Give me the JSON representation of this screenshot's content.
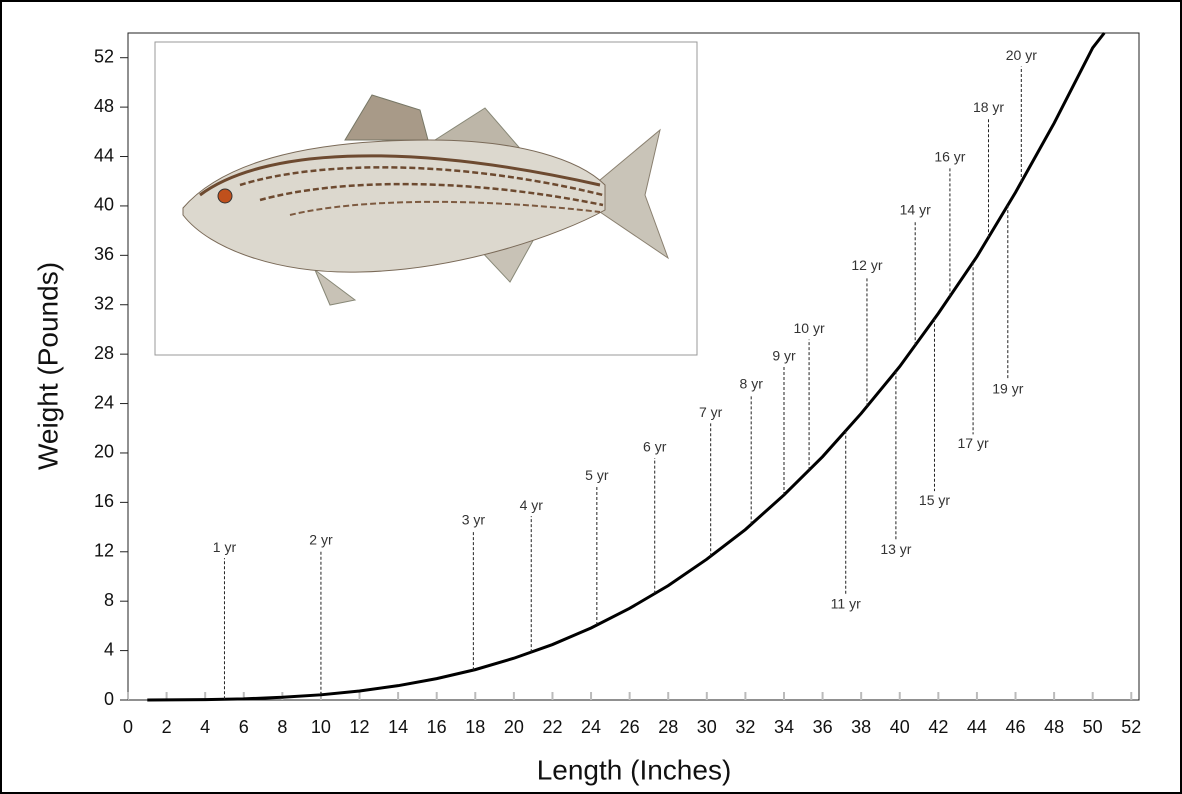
{
  "chart_data": {
    "type": "line",
    "x_label": "Length (Inches)",
    "y_label": "Weight (Pounds)",
    "xlim": [
      0,
      52.4
    ],
    "ylim": [
      0,
      54
    ],
    "xticks": [
      0,
      2,
      4,
      6,
      8,
      10,
      12,
      14,
      16,
      18,
      20,
      22,
      24,
      26,
      28,
      30,
      32,
      34,
      36,
      38,
      40,
      42,
      44,
      46,
      48,
      50,
      52
    ],
    "yticks": [
      0,
      4,
      8,
      12,
      16,
      20,
      24,
      28,
      32,
      36,
      40,
      44,
      48,
      52
    ],
    "series": [
      {
        "color": "#000000",
        "x": [
          1,
          4,
          6,
          8,
          10,
          12,
          14,
          16,
          18,
          20,
          22,
          24,
          26,
          28,
          30,
          32,
          34,
          36,
          38,
          40,
          42,
          44,
          46,
          48,
          50,
          50.6
        ],
        "values": [
          0,
          0.03,
          0.09,
          0.22,
          0.42,
          0.73,
          1.16,
          1.73,
          2.46,
          3.38,
          4.49,
          5.83,
          7.42,
          9.26,
          11.4,
          13.8,
          16.6,
          19.7,
          23.2,
          27,
          31.3,
          35.9,
          41.1,
          46.7,
          52.8,
          54
        ]
      }
    ],
    "annotations": [
      {
        "label": "1 yr",
        "x": 5.0,
        "y": 12.3
      },
      {
        "label": "2 yr",
        "x": 10.0,
        "y": 12.9
      },
      {
        "label": "3 yr",
        "x": 17.9,
        "y": 14.5
      },
      {
        "label": "4 yr",
        "x": 20.9,
        "y": 15.7
      },
      {
        "label": "5 yr",
        "x": 24.3,
        "y": 18.1
      },
      {
        "label": "6 yr",
        "x": 27.3,
        "y": 20.4
      },
      {
        "label": "7 yr",
        "x": 30.2,
        "y": 23.2
      },
      {
        "label": "8 yr",
        "x": 32.3,
        "y": 25.5
      },
      {
        "label": "9 yr",
        "x": 34.0,
        "y": 27.8
      },
      {
        "label": "10 yr",
        "x": 35.3,
        "y": 30.0
      },
      {
        "label": "11 yr",
        "x": 37.2,
        "y": 7.7
      },
      {
        "label": "12 yr",
        "x": 38.3,
        "y": 35.1
      },
      {
        "label": "13 yr",
        "x": 39.8,
        "y": 12.1
      },
      {
        "label": "14 yr",
        "x": 40.8,
        "y": 39.6
      },
      {
        "label": "15 yr",
        "x": 41.8,
        "y": 16.1
      },
      {
        "label": "16 yr",
        "x": 42.6,
        "y": 43.9
      },
      {
        "label": "17 yr",
        "x": 43.8,
        "y": 20.7
      },
      {
        "label": "18 yr",
        "x": 44.6,
        "y": 47.9
      },
      {
        "label": "19 yr",
        "x": 45.6,
        "y": 25.1
      },
      {
        "label": "20 yr",
        "x": 46.3,
        "y": 52.1
      }
    ]
  }
}
